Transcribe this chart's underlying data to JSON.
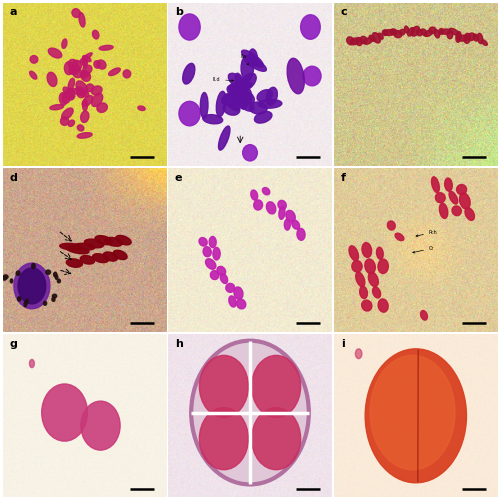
{
  "figsize": [
    5.0,
    5.0
  ],
  "dpi": 100,
  "panels": [
    {
      "label": "a",
      "bg_r": 0.88,
      "bg_g": 0.84,
      "bg_b": 0.3,
      "noise": 0.04,
      "chr_color": "#c0186a"
    },
    {
      "label": "b",
      "bg_r": 0.95,
      "bg_g": 0.92,
      "bg_b": 0.93,
      "noise": 0.02,
      "chr_color": "#7010a0"
    },
    {
      "label": "c",
      "bg_r": 0.82,
      "bg_g": 0.78,
      "bg_b": 0.55,
      "noise": 0.07,
      "chr_color": "#a01030"
    },
    {
      "label": "d",
      "bg_r": 0.8,
      "bg_g": 0.68,
      "bg_b": 0.55,
      "noise": 0.06,
      "chr_color": "#800010"
    },
    {
      "label": "e",
      "bg_r": 0.95,
      "bg_g": 0.92,
      "bg_b": 0.82,
      "noise": 0.03,
      "chr_color": "#c020b0"
    },
    {
      "label": "f",
      "bg_r": 0.88,
      "bg_g": 0.8,
      "bg_b": 0.6,
      "noise": 0.05,
      "chr_color": "#c01840"
    },
    {
      "label": "g",
      "bg_r": 0.97,
      "bg_g": 0.95,
      "bg_b": 0.9,
      "noise": 0.01,
      "chr_color": "#d04080"
    },
    {
      "label": "h",
      "bg_r": 0.94,
      "bg_g": 0.89,
      "bg_b": 0.92,
      "noise": 0.02,
      "chr_color": "#c83060"
    },
    {
      "label": "i",
      "bg_r": 0.98,
      "bg_g": 0.92,
      "bg_b": 0.85,
      "noise": 0.01,
      "chr_color": "#d04020"
    }
  ]
}
